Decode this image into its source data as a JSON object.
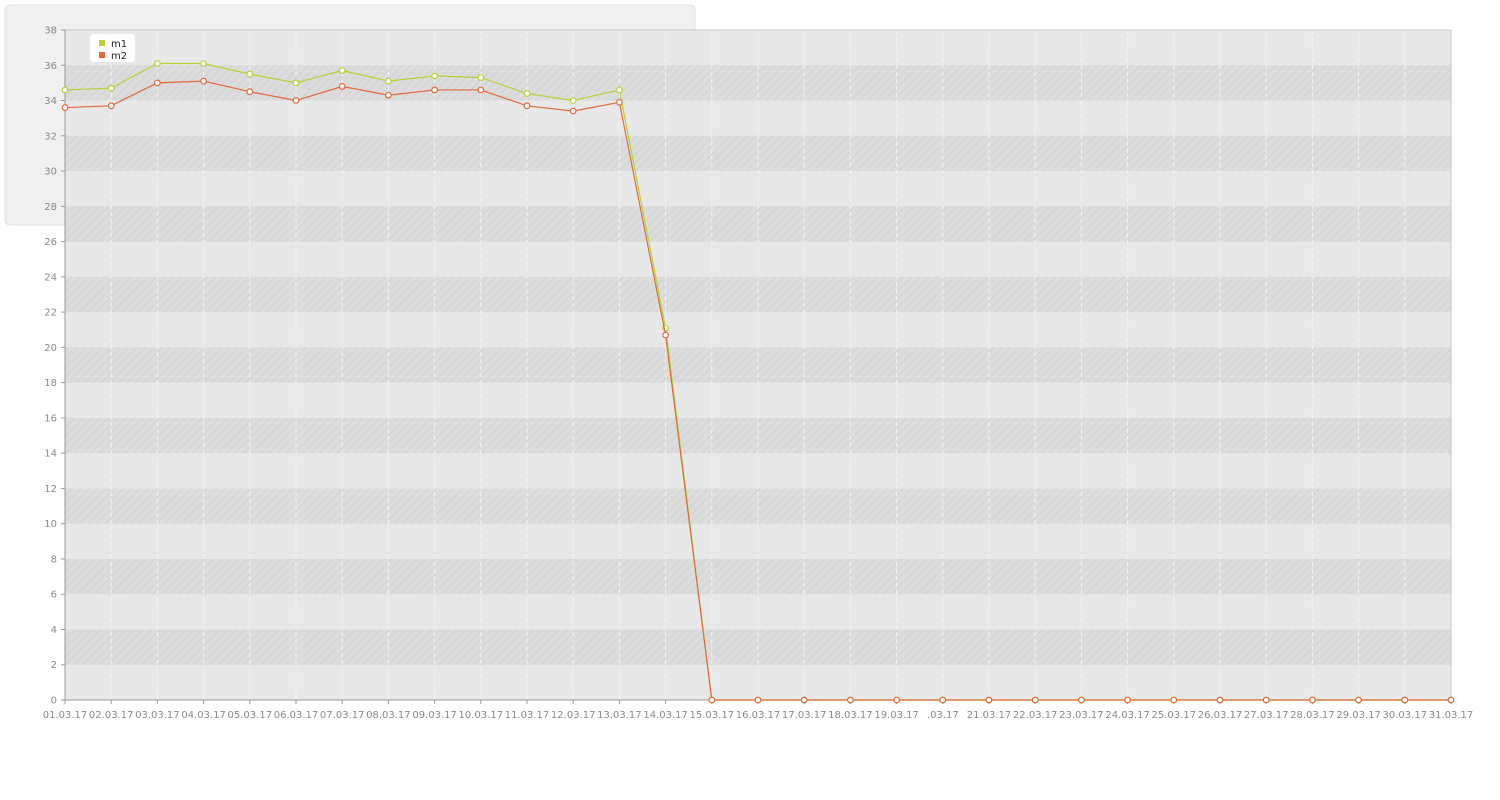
{
  "chart_data": {
    "type": "line",
    "title": "",
    "xlabel": "",
    "ylabel": "",
    "ylim": [
      0,
      38
    ],
    "yticks": [
      0,
      2,
      4,
      6,
      8,
      10,
      12,
      14,
      16,
      18,
      20,
      22,
      24,
      26,
      28,
      30,
      32,
      34,
      36,
      38
    ],
    "x": [
      "01.03.17",
      "02.03.17",
      "03.03.17",
      "04.03.17",
      "05.03.17",
      "06.03.17",
      "07.03.17",
      "08.03.17",
      "09.03.17",
      "10.03.17",
      "11.03.17",
      "12.03.17",
      "13.03.17",
      "14.03.17",
      "15.03.17",
      "16.03.17",
      "17.03.17",
      "18.03.17",
      "19.03.17",
      ".03.17",
      "21.03.17",
      "22.03.17",
      "23.03.17",
      "24.03.17",
      "25.03.17",
      "26.03.17",
      "27.03.17",
      "28.03.17",
      "29.03.17",
      "30.03.17",
      "31.03.17"
    ],
    "grid": true,
    "legend_position": "top-left",
    "series": [
      {
        "name": "m1",
        "color": "#b5d334",
        "values": [
          34.6,
          34.7,
          36.1,
          36.1,
          35.5,
          35.0,
          35.7,
          35.1,
          35.4,
          35.3,
          34.4,
          34.0,
          34.6,
          21.1,
          0,
          0,
          0,
          0,
          0,
          0,
          0,
          0,
          0,
          0,
          0,
          0,
          0,
          0,
          0,
          0,
          0
        ]
      },
      {
        "name": "m2",
        "color": "#e06a3a",
        "values": [
          33.6,
          33.7,
          35.0,
          35.1,
          34.5,
          34.0,
          34.8,
          34.3,
          34.6,
          34.6,
          33.7,
          33.4,
          33.9,
          20.7,
          0,
          0,
          0,
          0,
          0,
          0,
          0,
          0,
          0,
          0,
          0,
          0,
          0,
          0,
          0,
          0,
          0
        ]
      }
    ]
  }
}
